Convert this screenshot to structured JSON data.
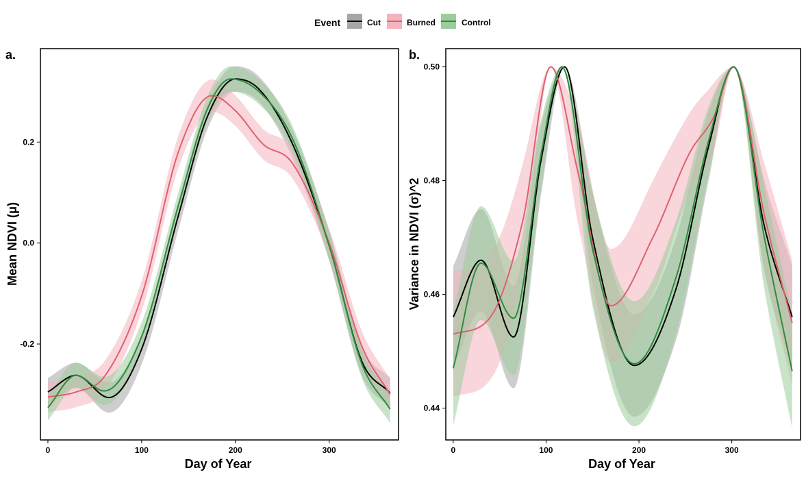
{
  "legend": {
    "title": "Event",
    "items": [
      {
        "label": "Cut",
        "line": "#000000",
        "fill": "#a6a6a6"
      },
      {
        "label": "Burned",
        "line": "#e0606e",
        "fill": "#f4b3bf"
      },
      {
        "label": "Control",
        "line": "#2e8b3e",
        "fill": "#9ccc9c"
      }
    ]
  },
  "chart_data": [
    {
      "type": "line",
      "panel": "a.",
      "xlabel": "Day of Year",
      "ylabel": "Mean NDVI (μ)",
      "xlim": [
        -8,
        374
      ],
      "ylim": [
        -0.39,
        0.385
      ],
      "x_ticks": [
        0,
        100,
        200,
        300
      ],
      "y_ticks": [
        -0.2,
        0.0,
        0.2
      ],
      "y_tick_labels": [
        "-0.2",
        "0.0",
        "0.2"
      ],
      "series": [
        {
          "name": "Cut",
          "color": "#000000",
          "band": "#a6a6a6",
          "x": [
            0,
            30,
            65,
            100,
            140,
            170,
            200,
            225,
            260,
            300,
            335,
            365
          ],
          "y": [
            -0.295,
            -0.262,
            -0.306,
            -0.21,
            0.06,
            0.25,
            0.325,
            0.305,
            0.2,
            -0.005,
            -0.235,
            -0.297
          ],
          "ci": [
            0.028,
            0.025,
            0.03,
            0.03,
            0.028,
            0.025,
            0.025,
            0.025,
            0.028,
            0.03,
            0.028,
            0.03
          ]
        },
        {
          "name": "Burned",
          "color": "#e0606e",
          "band": "#f4b3bf",
          "x": [
            0,
            30,
            60,
            100,
            140,
            175,
            200,
            230,
            260,
            300,
            335,
            365
          ],
          "y": [
            -0.305,
            -0.295,
            -0.265,
            -0.105,
            0.185,
            0.292,
            0.262,
            0.195,
            0.16,
            0.0,
            -0.205,
            -0.3
          ],
          "ci": [
            0.03,
            0.03,
            0.03,
            0.03,
            0.032,
            0.032,
            0.03,
            0.03,
            0.03,
            0.028,
            0.03,
            0.03
          ]
        },
        {
          "name": "Control",
          "color": "#2e8b3e",
          "band": "#9ccc9c",
          "x": [
            0,
            30,
            60,
            100,
            140,
            170,
            195,
            225,
            260,
            300,
            335,
            365
          ],
          "y": [
            -0.326,
            -0.262,
            -0.293,
            -0.185,
            0.08,
            0.265,
            0.325,
            0.3,
            0.21,
            -0.005,
            -0.24,
            -0.329
          ],
          "ci": [
            0.025,
            0.025,
            0.028,
            0.028,
            0.026,
            0.025,
            0.025,
            0.025,
            0.025,
            0.028,
            0.028,
            0.028
          ]
        }
      ]
    },
    {
      "type": "line",
      "panel": "b.",
      "xlabel": "Day of Year",
      "ylabel": "Variance in NDVI (σ)^2",
      "xlim": [
        -8,
        374
      ],
      "ylim": [
        0.4344,
        0.5032
      ],
      "x_ticks": [
        0,
        100,
        200,
        300
      ],
      "y_ticks": [
        0.44,
        0.46,
        0.48,
        0.5
      ],
      "y_tick_labels": [
        "0.44",
        "0.46",
        "0.48",
        "0.50"
      ],
      "series": [
        {
          "name": "Cut",
          "color": "#000000",
          "band": "#a6a6a6",
          "x": [
            0,
            30,
            65,
            95,
            120,
            150,
            195,
            240,
            275,
            302,
            335,
            365
          ],
          "y": [
            0.456,
            0.466,
            0.4525,
            0.484,
            0.5,
            0.47,
            0.4475,
            0.461,
            0.486,
            0.5,
            0.472,
            0.456
          ],
          "ci": [
            0.009,
            0.009,
            0.009,
            0.006,
            0.0,
            0.008,
            0.009,
            0.009,
            0.006,
            0.0,
            0.008,
            0.009
          ]
        },
        {
          "name": "Burned",
          "color": "#e0606e",
          "band": "#f4b3bf",
          "x": [
            0,
            40,
            75,
            105,
            135,
            170,
            215,
            255,
            280,
            302,
            335,
            365
          ],
          "y": [
            0.453,
            0.456,
            0.473,
            0.5,
            0.481,
            0.458,
            0.47,
            0.485,
            0.491,
            0.5,
            0.474,
            0.455
          ],
          "ci": [
            0.011,
            0.011,
            0.01,
            0.0,
            0.009,
            0.01,
            0.01,
            0.007,
            0.006,
            0.0,
            0.009,
            0.011
          ]
        },
        {
          "name": "Control",
          "color": "#2e8b3e",
          "band": "#9ccc9c",
          "x": [
            0,
            30,
            65,
            95,
            117,
            150,
            195,
            240,
            275,
            302,
            335,
            365
          ],
          "y": [
            0.447,
            0.4655,
            0.4558,
            0.485,
            0.5,
            0.468,
            0.4478,
            0.463,
            0.487,
            0.5,
            0.47,
            0.4465
          ],
          "ci": [
            0.01,
            0.01,
            0.01,
            0.006,
            0.0,
            0.01,
            0.011,
            0.01,
            0.006,
            0.0,
            0.009,
            0.01
          ]
        }
      ]
    }
  ]
}
